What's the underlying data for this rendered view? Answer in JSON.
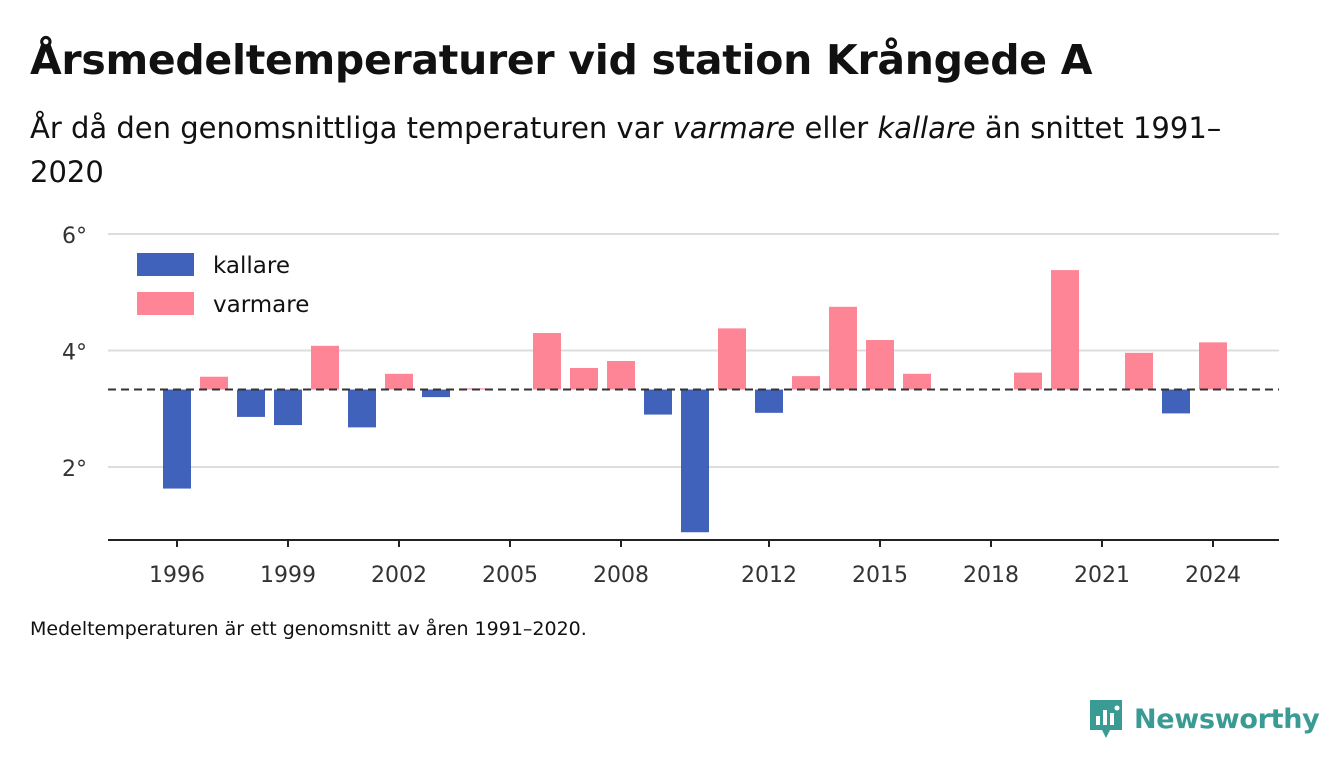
{
  "header": {
    "title": "Årsmedeltemperaturer vid station Krångede A",
    "subtitle_pre": "År då den genomsnittliga temperaturen var ",
    "subtitle_warm": "varmare",
    "subtitle_mid": " eller ",
    "subtitle_cold": "kallare",
    "subtitle_post": " än snittet 1991–2020"
  },
  "footnote": "Medeltemperaturen är ett genomsnitt av åren 1991–2020.",
  "brand": {
    "name": "Newsworthy",
    "icon": "newsworthy-logo-icon",
    "color": "#3a9a94"
  },
  "chart_data": {
    "type": "bar",
    "baseline": 3.33,
    "ylim": [
      0.8,
      6.0
    ],
    "yticks": [
      2,
      4,
      6
    ],
    "ytick_labels": [
      "2°",
      "4°",
      "6°"
    ],
    "xticks": [
      1996,
      1999,
      2002,
      2005,
      2008,
      2012,
      2015,
      2018,
      2021,
      2024
    ],
    "xlim": [
      1994.2,
      2025.8
    ],
    "colors": {
      "kallare": "#4062bb",
      "varmare": "#fd8596"
    },
    "legend": [
      {
        "key": "kallare",
        "label": "kallare"
      },
      {
        "key": "varmare",
        "label": "varmare"
      }
    ],
    "legend_position": "top-left",
    "grid": true,
    "years": [
      1996,
      1997,
      1998,
      1999,
      2000,
      2001,
      2002,
      2003,
      2004,
      2005,
      2006,
      2007,
      2008,
      2009,
      2010,
      2011,
      2012,
      2013,
      2014,
      2015,
      2016,
      2017,
      2018,
      2019,
      2020,
      2021,
      2022,
      2023,
      2024
    ],
    "values": [
      1.63,
      3.55,
      2.86,
      2.72,
      4.08,
      2.68,
      3.6,
      3.2,
      3.35,
      3.33,
      4.3,
      3.7,
      3.82,
      2.9,
      0.88,
      4.38,
      2.93,
      3.56,
      4.75,
      4.18,
      3.6,
      3.33,
      3.33,
      3.62,
      5.38,
      3.33,
      3.96,
      2.92,
      4.14
    ]
  }
}
